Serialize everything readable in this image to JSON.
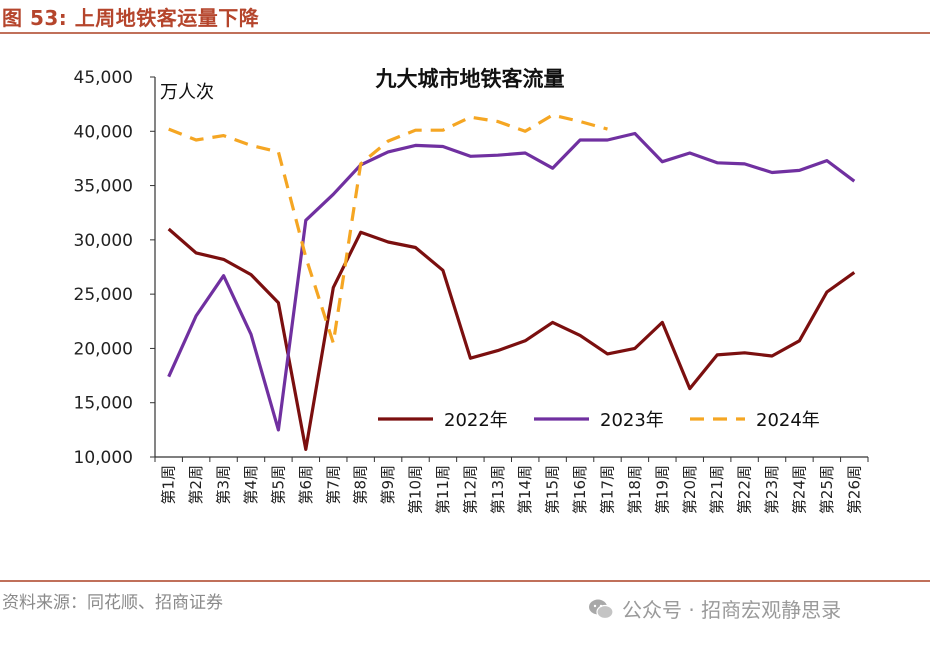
{
  "figure_label": "图 53:  上周地铁客运量下降",
  "source": "资料来源：同花顺、招商证券",
  "watermark": "公众号 · 招商宏观静思录",
  "colors": {
    "series_2022": "#7b0f0f",
    "series_2023": "#7030a0",
    "series_2024": "#f5a623",
    "rule": "#c0705a",
    "figure_label": "#b5452c"
  },
  "chart_data": {
    "type": "line",
    "title": "九大城市地铁客流量",
    "ylabel": "万人次",
    "xlabel": "",
    "ylim": [
      10000,
      45000
    ],
    "yticks": [
      "10,000",
      "15,000",
      "20,000",
      "25,000",
      "30,000",
      "35,000",
      "40,000",
      "45,000"
    ],
    "ytick_values": [
      10000,
      15000,
      20000,
      25000,
      30000,
      35000,
      40000,
      45000
    ],
    "categories": [
      "第1周",
      "第2周",
      "第3周",
      "第4周",
      "第5周",
      "第6周",
      "第7周",
      "第8周",
      "第9周",
      "第10周",
      "第11周",
      "第12周",
      "第13周",
      "第14周",
      "第15周",
      "第16周",
      "第17周",
      "第18周",
      "第19周",
      "第20周",
      "第21周",
      "第22周",
      "第23周",
      "第24周",
      "第25周",
      "第26周"
    ],
    "legend_position": "inside-bottom-right",
    "series": [
      {
        "name": "2022年",
        "style": "solid",
        "values": [
          31000,
          28800,
          28200,
          26800,
          24200,
          10700,
          25600,
          30700,
          29800,
          29300,
          27200,
          19100,
          19800,
          20700,
          22400,
          21200,
          19500,
          20000,
          22400,
          16300,
          19400,
          19600,
          19300,
          20700,
          25200,
          27000
        ]
      },
      {
        "name": "2023年",
        "style": "solid",
        "values": [
          17400,
          23000,
          26700,
          21300,
          12500,
          31800,
          34200,
          36900,
          38100,
          38700,
          38600,
          37700,
          37800,
          38000,
          36600,
          39200,
          39200,
          39800,
          37200,
          38000,
          37100,
          37000,
          36200,
          36400,
          37300,
          35400
        ]
      },
      {
        "name": "2024年",
        "style": "dashed",
        "values": [
          40200,
          39200,
          39600,
          38700,
          38100,
          28400,
          20500,
          37000,
          39100,
          40100,
          40100,
          41300,
          40900,
          40000,
          41500,
          40900,
          40200,
          null,
          null,
          null,
          null,
          null,
          null,
          null,
          null,
          null
        ]
      }
    ]
  }
}
